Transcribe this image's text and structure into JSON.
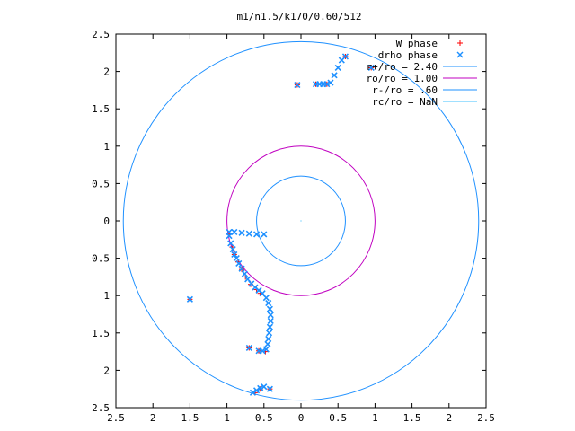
{
  "chart_data": {
    "type": "scatter",
    "title": "m1/n1.5/k170/0.60/512",
    "xlim": [
      -2.5,
      2.5
    ],
    "ylim": [
      -2.5,
      2.5
    ],
    "xticks": [
      -2.5,
      -2,
      -1.5,
      -1,
      -0.5,
      0,
      0.5,
      1,
      1.5,
      2,
      2.5
    ],
    "yticks": [
      -2.5,
      -2,
      -1.5,
      -1,
      -0.5,
      0,
      0.5,
      1,
      1.5,
      2,
      2.5
    ],
    "xtick_labels": [
      "2.5",
      "2",
      "1.5",
      "1",
      "0.5",
      "0",
      "0.5",
      "1",
      "1.5",
      "2",
      "2.5"
    ],
    "ytick_labels": [
      "2.5",
      "2",
      "1.5",
      "1",
      "0.5",
      "0",
      "0.5",
      "1",
      "1.5",
      "2",
      "2.5"
    ],
    "legend_position": "top-right",
    "grid": false,
    "series": [
      {
        "name": "W phase",
        "marker": "plus",
        "color": "#ff0000",
        "points": [
          [
            0.6,
            2.2
          ],
          [
            0.95,
            2.05
          ],
          [
            0.35,
            1.83
          ],
          [
            0.2,
            1.83
          ],
          [
            -0.05,
            1.82
          ],
          [
            -1.5,
            -1.05
          ],
          [
            -0.97,
            -0.18
          ],
          [
            -0.93,
            -0.35
          ],
          [
            -0.9,
            -0.45
          ],
          [
            -0.85,
            -0.55
          ],
          [
            -0.8,
            -0.65
          ],
          [
            -0.75,
            -0.75
          ],
          [
            -0.68,
            -0.85
          ],
          [
            -0.6,
            -0.92
          ],
          [
            -0.55,
            -0.97
          ],
          [
            -0.7,
            -1.7
          ],
          [
            -0.57,
            -1.74
          ],
          [
            -0.48,
            -1.75
          ],
          [
            -0.42,
            -2.25
          ],
          [
            -0.55,
            -2.25
          ],
          [
            -0.62,
            -2.3
          ]
        ]
      },
      {
        "name": "drho phase",
        "marker": "x",
        "color": "#1e90ff",
        "points": [
          [
            0.6,
            2.2
          ],
          [
            0.55,
            2.15
          ],
          [
            0.5,
            2.05
          ],
          [
            0.45,
            1.95
          ],
          [
            0.4,
            1.85
          ],
          [
            0.35,
            1.83
          ],
          [
            0.3,
            1.83
          ],
          [
            0.25,
            1.83
          ],
          [
            0.95,
            2.05
          ],
          [
            0.2,
            1.83
          ],
          [
            -0.05,
            1.82
          ],
          [
            -1.5,
            -1.05
          ],
          [
            -0.97,
            -0.15
          ],
          [
            -0.9,
            -0.15
          ],
          [
            -0.8,
            -0.16
          ],
          [
            -0.7,
            -0.17
          ],
          [
            -0.6,
            -0.18
          ],
          [
            -0.5,
            -0.18
          ],
          [
            -0.97,
            -0.2
          ],
          [
            -0.95,
            -0.3
          ],
          [
            -0.92,
            -0.38
          ],
          [
            -0.9,
            -0.45
          ],
          [
            -0.87,
            -0.5
          ],
          [
            -0.84,
            -0.57
          ],
          [
            -0.8,
            -0.64
          ],
          [
            -0.76,
            -0.71
          ],
          [
            -0.72,
            -0.78
          ],
          [
            -0.67,
            -0.84
          ],
          [
            -0.62,
            -0.89
          ],
          [
            -0.57,
            -0.93
          ],
          [
            -0.52,
            -0.97
          ],
          [
            -0.47,
            -1.03
          ],
          [
            -0.44,
            -1.1
          ],
          [
            -0.42,
            -1.18
          ],
          [
            -0.41,
            -1.26
          ],
          [
            -0.41,
            -1.34
          ],
          [
            -0.42,
            -1.42
          ],
          [
            -0.43,
            -1.5
          ],
          [
            -0.44,
            -1.58
          ],
          [
            -0.45,
            -1.65
          ],
          [
            -0.47,
            -1.72
          ],
          [
            -0.52,
            -1.74
          ],
          [
            -0.57,
            -1.74
          ],
          [
            -0.7,
            -1.7
          ],
          [
            -0.5,
            -2.22
          ],
          [
            -0.55,
            -2.24
          ],
          [
            -0.6,
            -2.27
          ],
          [
            -0.65,
            -2.3
          ],
          [
            -0.42,
            -2.25
          ]
        ]
      }
    ],
    "circles": [
      {
        "name": "r+/ro = 2.40",
        "radius": 2.4,
        "color": "#1e90ff"
      },
      {
        "name": "ro/ro = 1.00",
        "radius": 1.0,
        "color": "#c000c0"
      },
      {
        "name": "r-/ro = .60",
        "radius": 0.6,
        "color": "#1e90ff"
      },
      {
        "name": "rc/ro = NaN",
        "radius": null,
        "color": "#40c0ff"
      }
    ]
  }
}
